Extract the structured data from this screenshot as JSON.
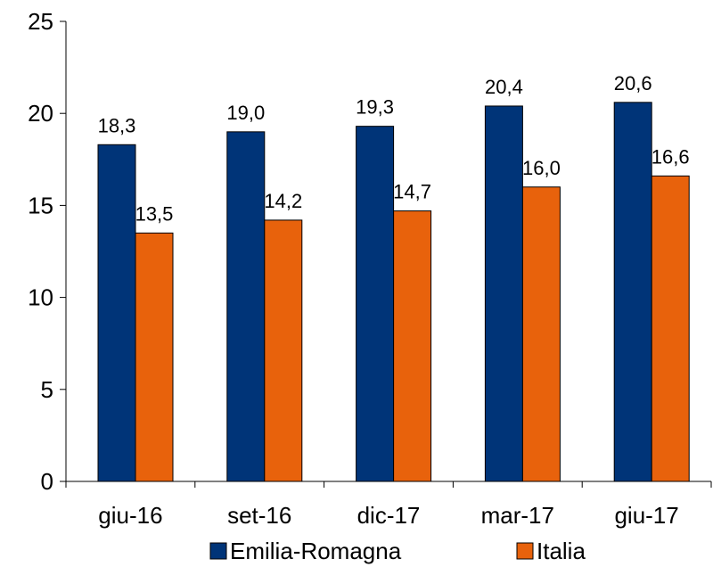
{
  "chart_data": {
    "type": "bar",
    "categories": [
      "giu-16",
      "set-16",
      "dic-17",
      "mar-17",
      "giu-17"
    ],
    "series": [
      {
        "name": "Emilia-Romagna",
        "color": "#003478",
        "values": [
          18.3,
          19.0,
          19.3,
          20.4,
          20.6
        ],
        "labels": [
          "18,3",
          "19,0",
          "19,3",
          "20,4",
          "20,6"
        ]
      },
      {
        "name": "Italia",
        "color": "#e8620c",
        "values": [
          13.5,
          14.2,
          14.7,
          16.0,
          16.6
        ],
        "labels": [
          "13,5",
          "14,2",
          "14,7",
          "16,0",
          "16,6"
        ]
      }
    ],
    "ylim": [
      0,
      25
    ],
    "yticks": [
      0,
      5,
      10,
      15,
      20,
      25
    ],
    "title": "",
    "xlabel": "",
    "ylabel": "",
    "grid": false,
    "legend": "bottom"
  }
}
